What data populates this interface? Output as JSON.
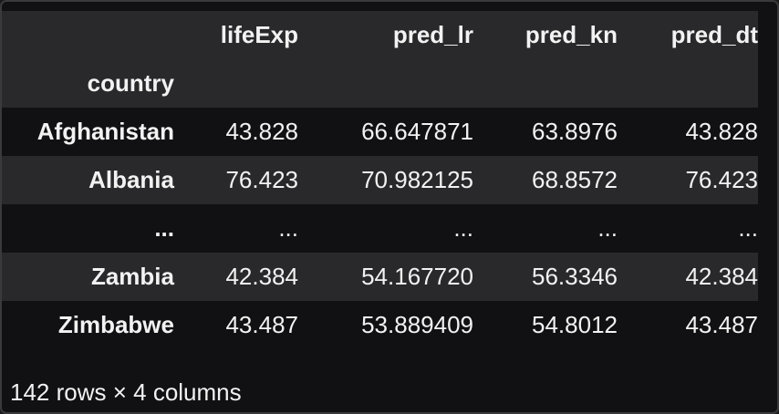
{
  "table": {
    "columns": [
      "lifeExp",
      "pred_lr",
      "pred_kn",
      "pred_dt"
    ],
    "index_name": "country",
    "rows": [
      {
        "index": "Afghanistan",
        "values": [
          "43.828",
          "66.647871",
          "63.8976",
          "43.828"
        ]
      },
      {
        "index": "Albania",
        "values": [
          "76.423",
          "70.982125",
          "68.8572",
          "76.423"
        ]
      },
      {
        "index": "...",
        "values": [
          "...",
          "...",
          "...",
          "..."
        ]
      },
      {
        "index": "Zambia",
        "values": [
          "42.384",
          "54.167720",
          "56.3346",
          "42.384"
        ]
      },
      {
        "index": "Zimbabwe",
        "values": [
          "43.487",
          "53.889409",
          "54.8012",
          "43.487"
        ]
      }
    ]
  },
  "footer": "142 rows × 4 columns",
  "colors": {
    "background": "#111113",
    "stripe": "#29292b",
    "text": "#f2f2f2",
    "border": "#3a3a3c"
  }
}
